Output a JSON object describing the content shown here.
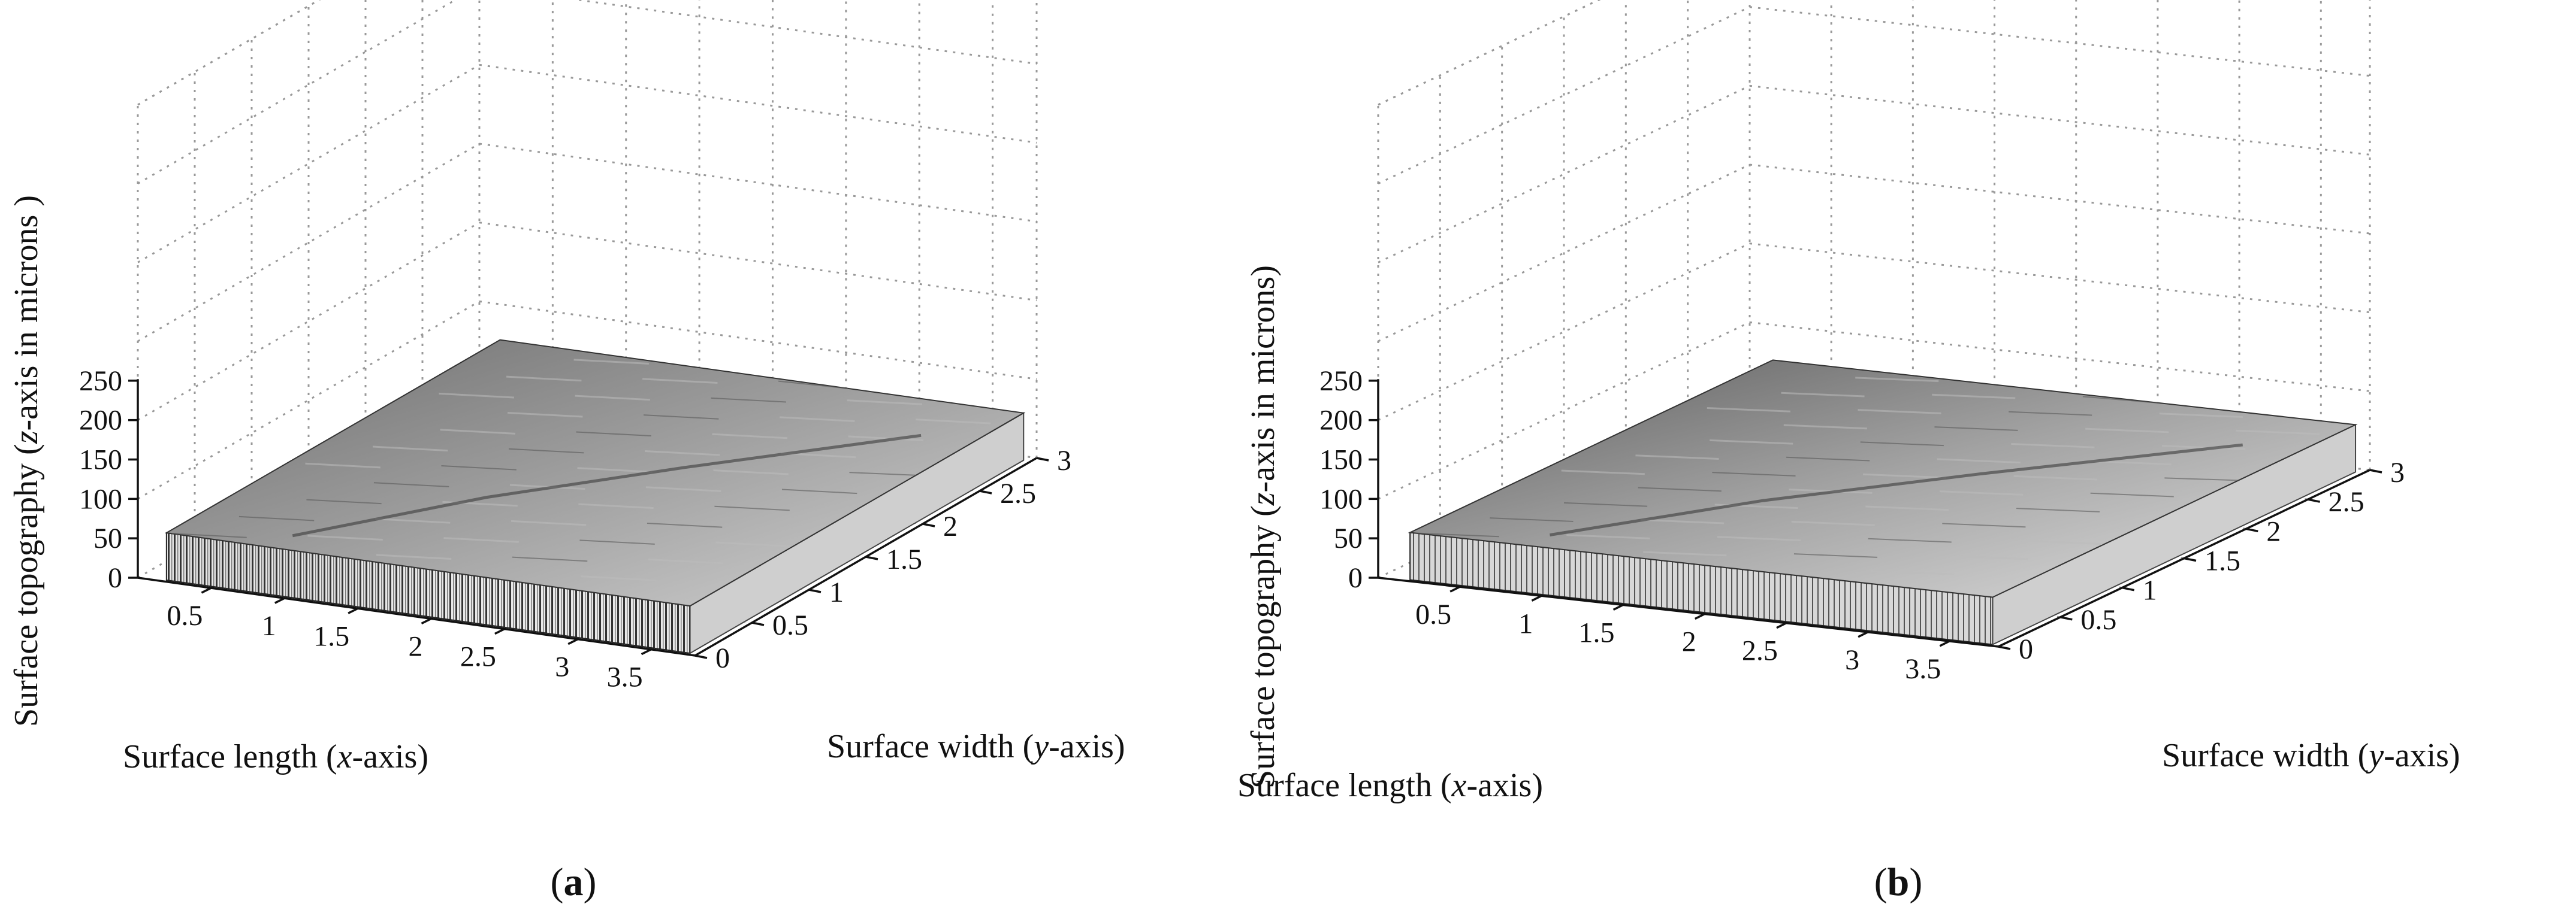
{
  "chart_data": [
    {
      "type": "surface3d",
      "panel_label": "a",
      "xlabel": [
        "Surface length (",
        "x",
        "-axis)"
      ],
      "ylabel": [
        "Surface width (",
        "y",
        "-axis)"
      ],
      "zlabel": [
        "Surface topography (",
        "z",
        "-axis in microns )"
      ],
      "x_ticks": [
        "0.5",
        "1",
        "1.5",
        "2",
        "2.5",
        "3",
        "3.5"
      ],
      "y_ticks": [
        "0",
        "0.5",
        "1",
        "1.5",
        "2",
        "2.5",
        "3"
      ],
      "z_ticks": [
        "0",
        "50",
        "100",
        "150",
        "200",
        "250"
      ],
      "xlim": [
        0,
        3.8
      ],
      "ylim": [
        0,
        3
      ],
      "zlim": [
        0,
        600
      ],
      "surface_height": 60,
      "grid": true,
      "colormap": "gray"
    },
    {
      "type": "surface3d",
      "panel_label": "b",
      "xlabel": [
        "Surface length (",
        "x",
        "-axis)"
      ],
      "ylabel": [
        "Surface width (",
        "y",
        "-axis)"
      ],
      "zlabel": [
        "Surface topography (",
        "z",
        "-axis in microns)"
      ],
      "x_ticks": [
        "0.5",
        "1",
        "1.5",
        "2",
        "2.5",
        "3",
        "3.5"
      ],
      "y_ticks": [
        "0",
        "0.5",
        "1",
        "1.5",
        "2",
        "2.5",
        "3"
      ],
      "z_ticks": [
        "0",
        "50",
        "100",
        "150",
        "200",
        "250"
      ],
      "xlim": [
        0,
        3.8
      ],
      "ylim": [
        0,
        3
      ],
      "zlim": [
        0,
        600
      ],
      "surface_height": 60,
      "grid": true,
      "colormap": "gray"
    }
  ]
}
